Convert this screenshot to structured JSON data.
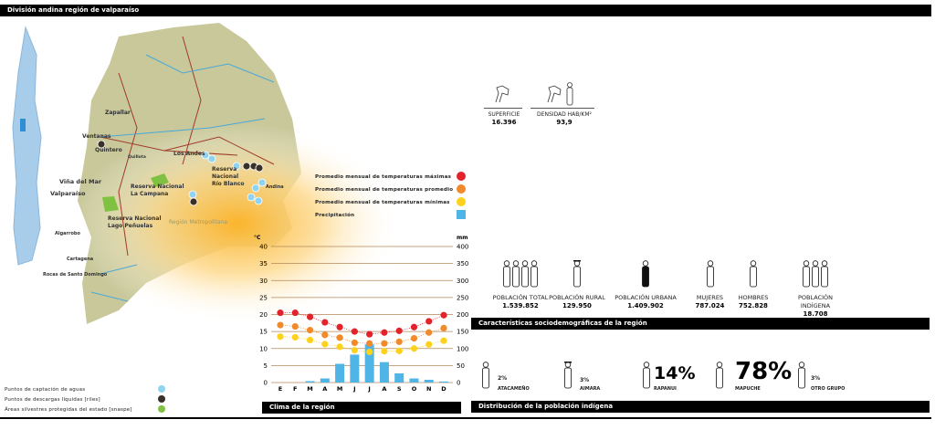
{
  "header": {
    "title": "División andina región de valparaíso"
  },
  "map": {
    "places": [
      "Zapallar",
      "Ventanas",
      "Quintero",
      "Quillota",
      "Los Andes",
      "Viña del Mar",
      "Valparaíso",
      "Algarrobo",
      "Cartagena",
      "Rocas de Santo Domingo",
      "Andina"
    ],
    "reserves": [
      "Reserva Nacional Río Blanco",
      "Reserva Nacional La Campana",
      "Reserva Nacional Lago Peñuelas"
    ],
    "region": "Región Metropolitana"
  },
  "map_legend": [
    {
      "label": "Puntos de captación de aguas",
      "color": "#8fd3f0"
    },
    {
      "label": "Puntos de descargas líquidas [riles]",
      "color": "#3a302a"
    },
    {
      "label": "Áreas silvestres protegidas del estado [snaspe]",
      "color": "#7fc241"
    }
  ],
  "chart_legend": [
    {
      "label": "Promedio mensual de temperaturas máximas",
      "color": "#e3232b"
    },
    {
      "label": "Promedio mensual de temperaturas promedio",
      "color": "#f08a2a"
    },
    {
      "label": "Promedio mensual de temperaturas mínimas",
      "color": "#fcd21c"
    },
    {
      "label": "Precipitación",
      "color": "#4fb4e6"
    }
  ],
  "chart_data": {
    "type": "bar+line",
    "title": "Clima de la región",
    "categories": [
      "E",
      "F",
      "M",
      "A",
      "M",
      "J",
      "J",
      "A",
      "S",
      "O",
      "N",
      "D"
    ],
    "ylabel_left": "°C",
    "ylim_left": [
      0,
      40
    ],
    "yticks_left": [
      0,
      5,
      10,
      15,
      20,
      25,
      30,
      35,
      40
    ],
    "ylabel_right": "mm",
    "ylim_right": [
      0,
      400
    ],
    "yticks_right": [
      0,
      50,
      100,
      150,
      200,
      250,
      300,
      350,
      400
    ],
    "series": [
      {
        "name": "Máximas",
        "axis": "left",
        "values": [
          20.5,
          20.5,
          19.3,
          17.7,
          16.3,
          15,
          14.2,
          14.7,
          15.2,
          16.3,
          18,
          19.8
        ]
      },
      {
        "name": "Promedio",
        "axis": "left",
        "values": [
          16.9,
          16.5,
          15.4,
          14,
          13.2,
          11.7,
          11.5,
          11.5,
          12,
          13,
          14.7,
          16
        ]
      },
      {
        "name": "Mínimas",
        "axis": "left",
        "values": [
          13.5,
          13.3,
          12.5,
          11.3,
          10.5,
          9.5,
          9,
          9.2,
          9.3,
          10,
          11.2,
          12.3
        ]
      },
      {
        "name": "Precipitación",
        "axis": "right",
        "values": [
          0,
          0,
          4,
          12,
          55,
          82,
          112,
          60,
          27,
          12,
          8,
          3
        ]
      }
    ]
  },
  "surface": {
    "superficie_label": "Superficie",
    "superficie": "16.396",
    "densidad_label": "Densidad hab/km²",
    "densidad": "93,9"
  },
  "sociodemo": {
    "title": "Características sociodemográficas de la región",
    "items": [
      {
        "label": "Población total",
        "value": "1.539.852"
      },
      {
        "label": "Población rural",
        "value": "129.950"
      },
      {
        "label": "Población urbana",
        "value": "1.409.902"
      },
      {
        "label": "Mujeres",
        "value": "787.024"
      },
      {
        "label": "Hombres",
        "value": "752.828"
      },
      {
        "label": "Población indígena",
        "value": "18.708"
      }
    ]
  },
  "indigena": {
    "title": "Distribución de la población indígena",
    "items": [
      {
        "label": "Atacameño",
        "pct": "2%"
      },
      {
        "label": "Aimara",
        "pct": "3%"
      },
      {
        "label": "Rapanui",
        "pct": "14%"
      },
      {
        "label": "Mapuche",
        "pct": "78%"
      },
      {
        "label": "Otro grupo",
        "pct": "3%"
      }
    ]
  }
}
